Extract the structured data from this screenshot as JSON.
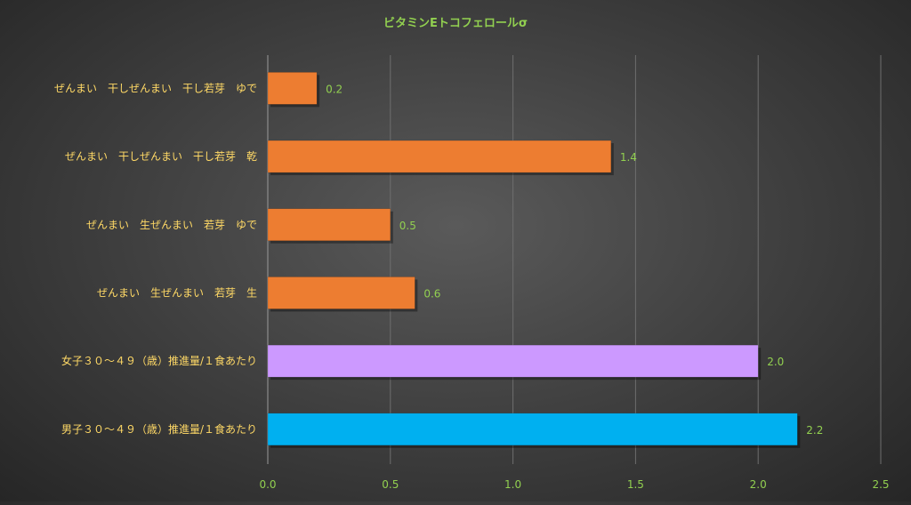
{
  "chart_data": {
    "type": "bar",
    "orientation": "horizontal",
    "title": "ビタミンEトコフェロールσ",
    "categories": [
      "ぜんまい　干しぜんまい　干し若芽　ゆで",
      "ぜんまい　干しぜんまい　干し若芽　乾",
      "ぜんまい　生ぜんまい　若芽　ゆで",
      "ぜんまい　生ぜんまい　若芽　生",
      "女子３０～４９（歳）推進量/１食あたり",
      "男子３０～４９（歳）推進量/１食あたり"
    ],
    "values": [
      0.2,
      1.4,
      0.5,
      0.6,
      2.0,
      2.2
    ],
    "value_labels": [
      "0.2",
      "1.4",
      "0.5",
      "0.6",
      "2.0",
      "2.2"
    ],
    "values_exact": [
      0.2,
      1.4,
      0.5,
      0.6,
      2.0,
      2.16
    ],
    "bar_colors": [
      "#ed7d31",
      "#ed7d31",
      "#ed7d31",
      "#ed7d31",
      "#cc99ff",
      "#00b0f0"
    ],
    "xlim": [
      0,
      2.5
    ],
    "xticks": [
      "0.0",
      "0.5",
      "1.0",
      "1.5",
      "2.0",
      "2.5"
    ],
    "xlabel": "",
    "ylabel": "",
    "grid": "vertical",
    "legend": "none"
  },
  "colors": {
    "title": "#92d050",
    "category_label": "#ffd966",
    "tick_label": "#92d050",
    "value_label": "#92d050",
    "gridline": "#6e6e6e",
    "axis": "#9a9a9a"
  }
}
